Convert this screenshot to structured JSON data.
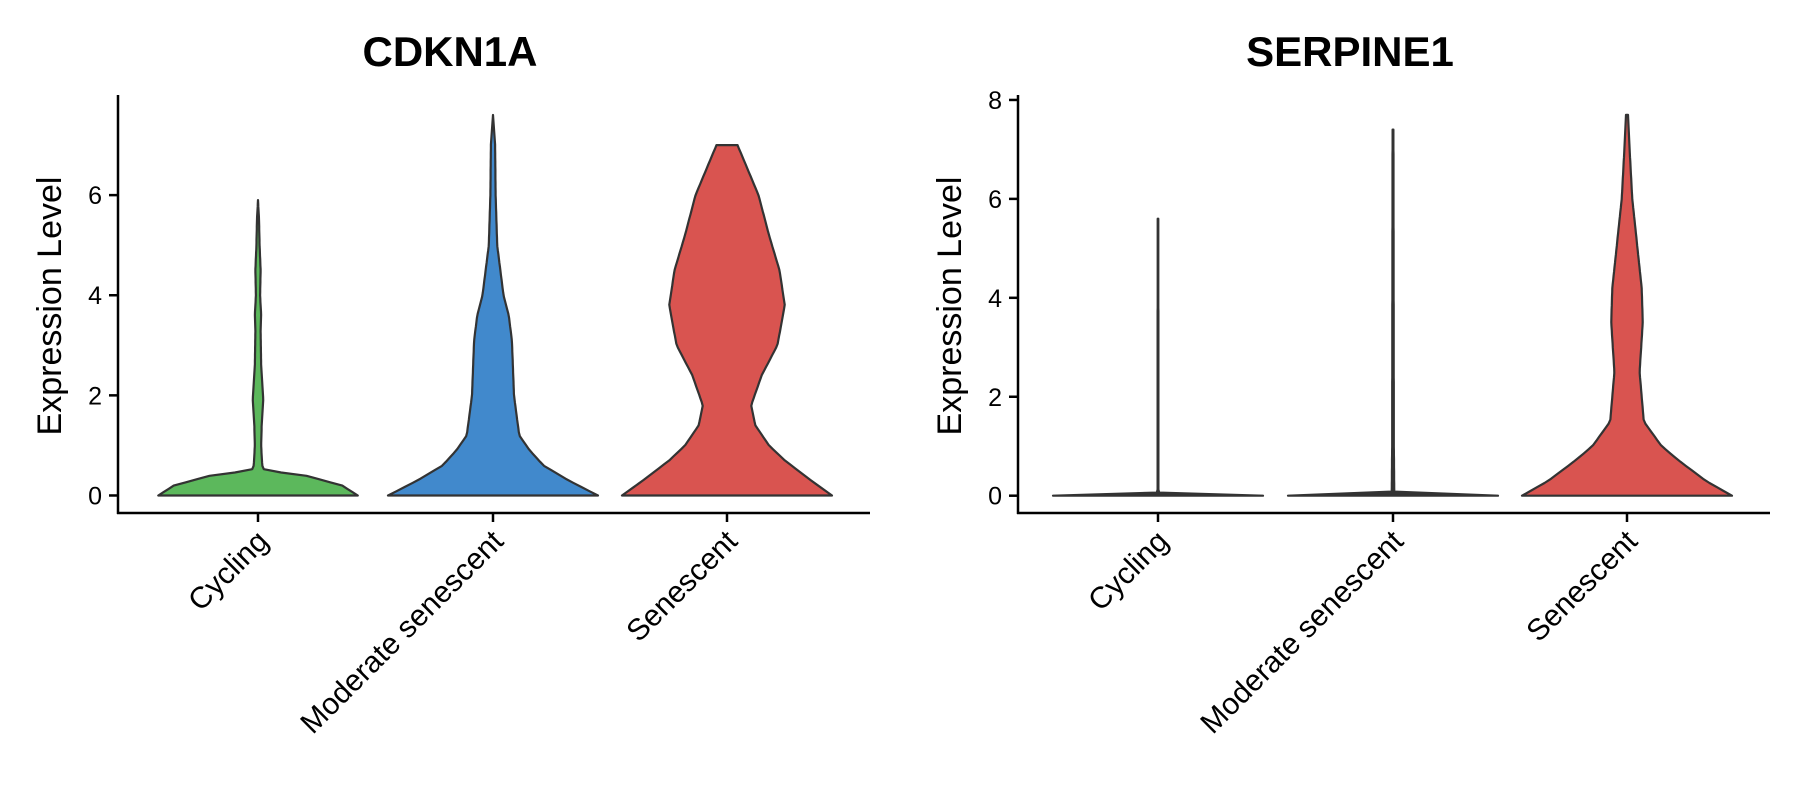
{
  "chart_data": [
    {
      "type": "violin",
      "title": "CDKN1A",
      "ylabel": "Expression Level",
      "ylim": [
        -0.35,
        8.0
      ],
      "yticks": [
        0,
        2,
        4,
        6
      ],
      "categories": [
        "Cycling",
        "Moderate senescent",
        "Senescent"
      ],
      "series": [
        {
          "category": "Cycling",
          "color": "#5cb85c",
          "max": 5.9,
          "profile": [
            [
              0,
              0.95
            ],
            [
              0.2,
              0.8
            ],
            [
              0.4,
              0.45
            ],
            [
              0.5,
              0.06
            ],
            [
              0.6,
              0.04
            ],
            [
              1.0,
              0.03
            ],
            [
              1.4,
              0.035
            ],
            [
              1.9,
              0.05
            ],
            [
              2.1,
              0.045
            ],
            [
              2.6,
              0.03
            ],
            [
              3.3,
              0.025
            ],
            [
              3.6,
              0.03
            ],
            [
              4.0,
              0.02
            ],
            [
              4.5,
              0.025
            ],
            [
              5.0,
              0.015
            ],
            [
              5.5,
              0.01
            ],
            [
              5.9,
              0.0
            ]
          ]
        },
        {
          "category": "Moderate senescent",
          "color": "#4189cc",
          "max": 7.6,
          "profile": [
            [
              0,
              1.0
            ],
            [
              0.3,
              0.72
            ],
            [
              0.6,
              0.48
            ],
            [
              0.9,
              0.35
            ],
            [
              1.2,
              0.25
            ],
            [
              2.0,
              0.2
            ],
            [
              3.1,
              0.18
            ],
            [
              3.6,
              0.15
            ],
            [
              4.0,
              0.1
            ],
            [
              5.0,
              0.04
            ],
            [
              6.0,
              0.025
            ],
            [
              7.0,
              0.02
            ],
            [
              7.6,
              0.0
            ]
          ]
        },
        {
          "category": "Senescent",
          "color": "#d95450",
          "max": 7.0,
          "profile": [
            [
              0,
              1.0
            ],
            [
              0.3,
              0.8
            ],
            [
              0.7,
              0.55
            ],
            [
              1.0,
              0.4
            ],
            [
              1.4,
              0.27
            ],
            [
              1.8,
              0.23
            ],
            [
              2.4,
              0.33
            ],
            [
              3.0,
              0.48
            ],
            [
              3.8,
              0.55
            ],
            [
              4.5,
              0.5
            ],
            [
              5.2,
              0.4
            ],
            [
              6.0,
              0.3
            ],
            [
              6.5,
              0.2
            ],
            [
              7.0,
              0.1
            ]
          ]
        }
      ]
    },
    {
      "type": "violin",
      "title": "SERPINE1",
      "ylabel": "Expression Level",
      "ylim": [
        -0.35,
        8.1
      ],
      "yticks": [
        0,
        2,
        4,
        6,
        8
      ],
      "categories": [
        "Cycling",
        "Moderate senescent",
        "Senescent"
      ],
      "series": [
        {
          "category": "Cycling",
          "color": "#333333",
          "max": 5.6,
          "profile": [
            [
              0,
              1.0
            ],
            [
              0.02,
              0.02
            ],
            [
              0.1,
              0.004
            ],
            [
              5.6,
              0.003
            ]
          ]
        },
        {
          "category": "Moderate senescent",
          "color": "#333333",
          "max": 7.4,
          "profile": [
            [
              0,
              1.0
            ],
            [
              0.02,
              0.05
            ],
            [
              0.08,
              0.012
            ],
            [
              1.0,
              0.008
            ],
            [
              7.4,
              0.004
            ]
          ]
        },
        {
          "category": "Senescent",
          "color": "#d95450",
          "max": 7.7,
          "profile": [
            [
              0,
              1.0
            ],
            [
              0.3,
              0.75
            ],
            [
              0.7,
              0.5
            ],
            [
              1.0,
              0.33
            ],
            [
              1.5,
              0.16
            ],
            [
              2.5,
              0.12
            ],
            [
              3.5,
              0.15
            ],
            [
              4.2,
              0.14
            ],
            [
              5.0,
              0.1
            ],
            [
              6.0,
              0.05
            ],
            [
              7.0,
              0.025
            ],
            [
              7.7,
              0.01
            ]
          ]
        }
      ]
    }
  ]
}
